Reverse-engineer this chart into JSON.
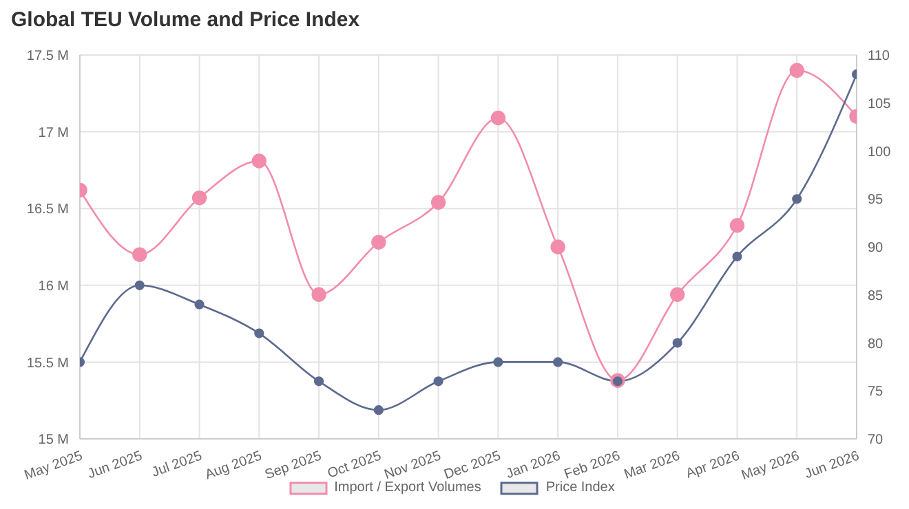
{
  "chart_data": {
    "type": "line",
    "title": "Global TEU Volume and Price Index",
    "categories": [
      "May 2025",
      "Jun 2025",
      "Jul 2025",
      "Aug 2025",
      "Sep 2025",
      "Oct 2025",
      "Nov 2025",
      "Dec 2025",
      "Jan 2026",
      "Feb 2026",
      "Mar 2026",
      "Apr 2026",
      "May 2026",
      "Jun 2026"
    ],
    "series": [
      {
        "name": "Import / Export Volumes",
        "color": "#f28cab",
        "values": [
          16.62,
          16.2,
          16.57,
          16.81,
          15.94,
          16.28,
          16.54,
          17.09,
          16.25,
          15.38,
          15.94,
          16.39,
          17.4,
          17.1
        ]
      },
      {
        "name": "Price Index",
        "color": "#5c6a8e",
        "axis": "y2",
        "values": [
          78,
          86,
          84,
          81,
          76,
          73,
          76,
          78,
          78,
          76,
          80,
          89,
          95,
          108
        ]
      }
    ],
    "ylim": [
      15,
      17.5
    ],
    "yticks": [
      {
        "value": 15,
        "label": "15 M"
      },
      {
        "value": 15.5,
        "label": "15.5 M"
      },
      {
        "value": 16,
        "label": "16 M"
      },
      {
        "value": 16.5,
        "label": "16.5 M"
      },
      {
        "value": 17,
        "label": "17 M"
      },
      {
        "value": 17.5,
        "label": "17.5 M"
      }
    ],
    "y2lim": [
      70,
      110
    ],
    "y2ticks": [
      70,
      75,
      80,
      85,
      90,
      95,
      100,
      105,
      110
    ],
    "grid": true,
    "legend": "bottom",
    "marker": "circle",
    "line_style": "solid"
  }
}
